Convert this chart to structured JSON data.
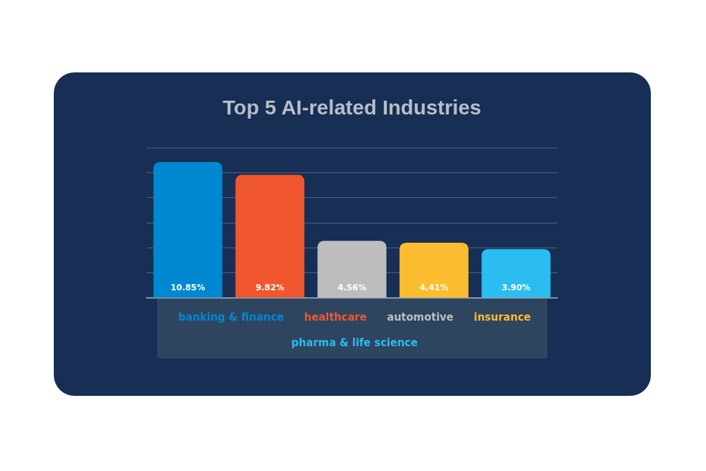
{
  "chart_data": {
    "type": "bar",
    "title": "Top 5 AI-related Industries",
    "categories": [
      null
    ],
    "series": [
      {
        "name": "banking & finance",
        "color": "#0288d1",
        "values": [
          10.85
        ],
        "value_labels": [
          "10.85%"
        ]
      },
      {
        "name": "healthcare",
        "color": "#f1572e",
        "values": [
          9.82
        ],
        "value_labels": [
          "9.82%"
        ]
      },
      {
        "name": "automotive",
        "color": "#bdbdbd",
        "values": [
          4.56
        ],
        "value_labels": [
          "4.56%"
        ]
      },
      {
        "name": "insurance",
        "color": "#fbbd2f",
        "values": [
          4.41
        ],
        "value_labels": [
          "4.41%"
        ]
      },
      {
        "name": "pharma & life science",
        "color": "#2bbcf0",
        "values": [
          3.9
        ],
        "value_labels": [
          "3.90%"
        ]
      }
    ],
    "ylim": [
      0,
      12
    ],
    "yticks": [
      {
        "value": 0,
        "label": null
      },
      {
        "value": 2,
        "label": null
      },
      {
        "value": 4,
        "label": null
      },
      {
        "value": 6,
        "label": null
      },
      {
        "value": 8,
        "label": null
      },
      {
        "value": 10,
        "label": null
      },
      {
        "value": 12,
        "label": null
      }
    ],
    "grid": "y",
    "legend": "bottom",
    "tick_labels": false
  }
}
